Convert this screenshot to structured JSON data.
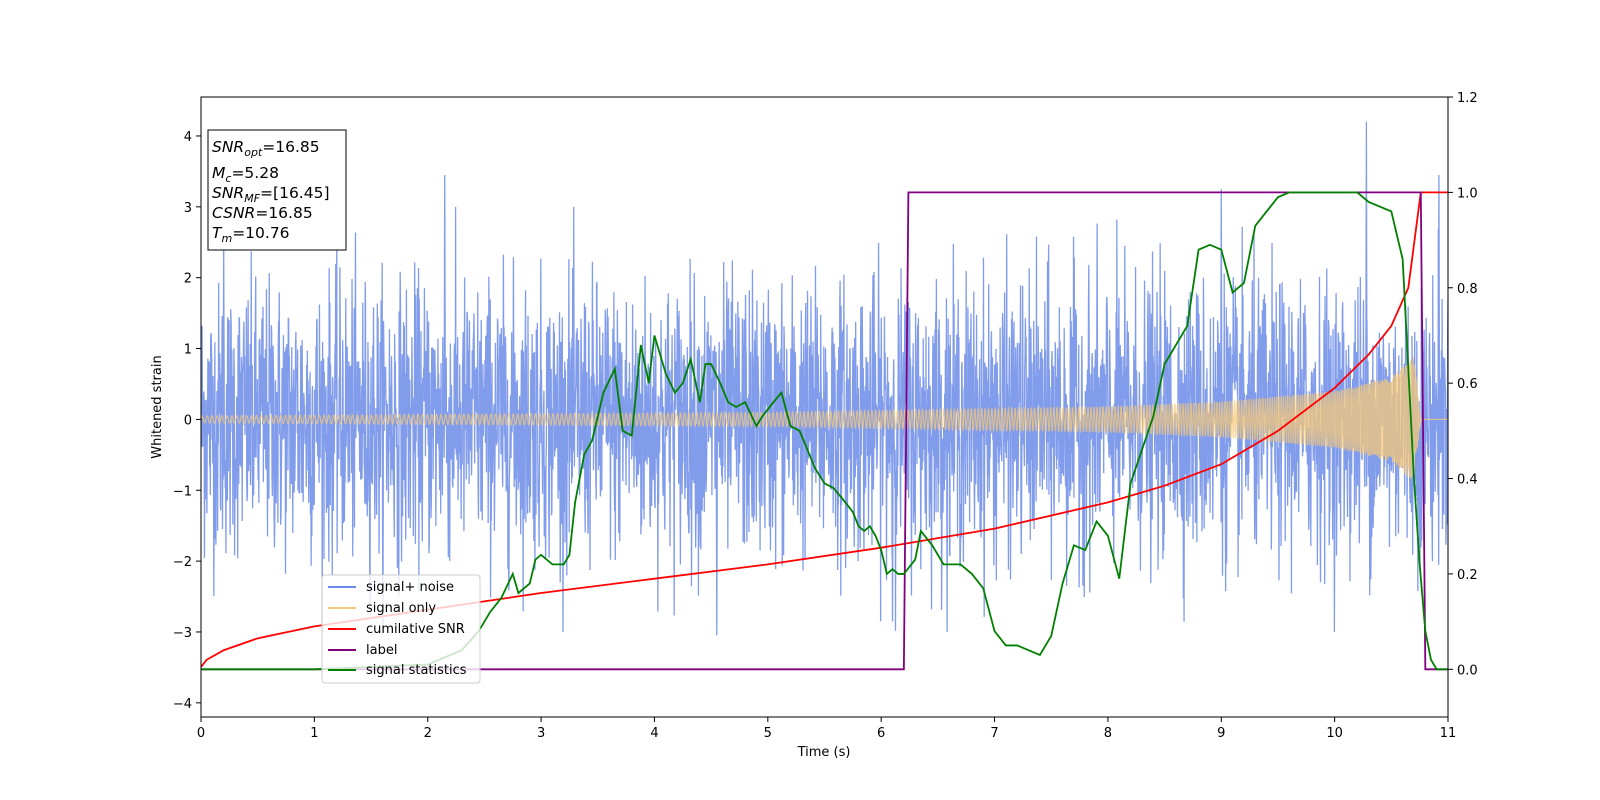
{
  "chart_data": {
    "type": "line",
    "xlabel": "Time (s)",
    "ylabel": "Whitened strain",
    "title": "",
    "xlim": [
      0,
      11
    ],
    "ylim_left": [
      -4.2,
      4.55
    ],
    "ylim_right": [
      -0.1,
      1.2
    ],
    "x_ticks": [
      0,
      1,
      2,
      3,
      4,
      5,
      6,
      7,
      8,
      9,
      10,
      11
    ],
    "y_ticks_left": [
      -4,
      -3,
      -2,
      -1,
      0,
      1,
      2,
      3,
      4
    ],
    "y_ticks_right": [
      0.0,
      0.2,
      0.4,
      0.6,
      0.8,
      1.0,
      1.2
    ],
    "grid": false,
    "legend_position": "lower-left",
    "legend": [
      {
        "label": "signal+ noise",
        "color": "#6b8be8"
      },
      {
        "label": "signal only",
        "color": "#f5c878"
      },
      {
        "label": "cumilative SNR",
        "color": "#ff0000"
      },
      {
        "label": "label",
        "color": "#800080"
      },
      {
        "label": "signal statistics",
        "color": "#008000"
      }
    ],
    "info_box": {
      "snr_opt": {
        "base": "SNR",
        "sub": "opt",
        "value": "=16.85"
      },
      "mc": {
        "base": "M",
        "sub": "c",
        "value": "=5.28"
      },
      "snr_mf": {
        "base": "SNR",
        "sub": "MF",
        "value": "=[16.45]"
      },
      "csnr": {
        "base": "CSNR",
        "value": "=16.85"
      },
      "tm": {
        "base": "T",
        "sub": "m",
        "value": "=10.76"
      }
    },
    "series": [
      {
        "name": "signal+ noise",
        "axis": "left",
        "color": "#6b8be8",
        "description": "whitened noisy strain, approximately Gaussian with std ~1 and spikes up to ~4.2",
        "peaks": [
          [
            0.2,
            2.5
          ],
          [
            2.15,
            3.45
          ],
          [
            9.0,
            3.25
          ],
          [
            10.28,
            4.2
          ],
          [
            10.92,
            3.45
          ],
          [
            4.55,
            -3.05
          ],
          [
            6.1,
            -2.85
          ]
        ]
      },
      {
        "name": "signal only",
        "axis": "left",
        "color": "#f5c878",
        "description": "chirp signal, amplitude grows from ~0.05 to ~0.9 at merger time",
        "amplitude": [
          [
            0,
            0.05
          ],
          [
            5,
            0.1
          ],
          [
            8,
            0.18
          ],
          [
            9,
            0.25
          ],
          [
            10,
            0.4
          ],
          [
            10.5,
            0.6
          ],
          [
            10.7,
            0.9
          ],
          [
            10.76,
            0.0
          ]
        ]
      },
      {
        "name": "cumilative SNR",
        "axis": "right",
        "color": "#ff0000",
        "x": [
          0,
          0.05,
          0.2,
          0.5,
          1.0,
          2.0,
          3.0,
          4.0,
          5.0,
          6.0,
          7.0,
          8.0,
          8.5,
          9.0,
          9.5,
          10.0,
          10.3,
          10.5,
          10.65,
          10.76,
          11.0
        ],
        "y": [
          0.005,
          0.02,
          0.04,
          0.065,
          0.09,
          0.125,
          0.16,
          0.19,
          0.22,
          0.255,
          0.295,
          0.35,
          0.385,
          0.43,
          0.5,
          0.59,
          0.66,
          0.72,
          0.8,
          1.0,
          1.0
        ]
      },
      {
        "name": "label",
        "axis": "right",
        "color": "#800080",
        "x": [
          0,
          6.2,
          6.24,
          10.76,
          10.8,
          11.0
        ],
        "y": [
          0.0,
          0.0,
          1.0,
          1.0,
          0.0,
          0.0
        ]
      },
      {
        "name": "signal statistics",
        "axis": "right",
        "color": "#008000",
        "x": [
          0,
          1.0,
          2.0,
          2.3,
          2.45,
          2.55,
          2.65,
          2.75,
          2.8,
          2.9,
          2.95,
          3.0,
          3.1,
          3.15,
          3.2,
          3.25,
          3.3,
          3.38,
          3.45,
          3.55,
          3.65,
          3.72,
          3.8,
          3.88,
          3.95,
          4.0,
          4.1,
          4.18,
          4.25,
          4.32,
          4.4,
          4.45,
          4.5,
          4.58,
          4.65,
          4.72,
          4.8,
          4.9,
          4.95,
          5.05,
          5.12,
          5.2,
          5.28,
          5.35,
          5.42,
          5.5,
          5.58,
          5.65,
          5.75,
          5.8,
          5.85,
          5.9,
          5.95,
          6.0,
          6.05,
          6.1,
          6.15,
          6.2,
          6.3,
          6.35,
          6.45,
          6.55,
          6.7,
          6.8,
          6.9,
          7.0,
          7.1,
          7.2,
          7.3,
          7.4,
          7.5,
          7.6,
          7.7,
          7.8,
          7.9,
          8.0,
          8.1,
          8.2,
          8.3,
          8.4,
          8.5,
          8.6,
          8.7,
          8.8,
          8.9,
          9.0,
          9.1,
          9.2,
          9.3,
          9.4,
          9.5,
          9.6,
          9.7,
          9.8,
          9.9,
          10.0,
          10.1,
          10.2,
          10.3,
          10.4,
          10.5,
          10.6,
          10.7,
          10.75,
          10.8,
          10.85,
          10.9,
          11.0
        ],
        "y": [
          0.0,
          0.0,
          0.01,
          0.04,
          0.08,
          0.12,
          0.15,
          0.2,
          0.16,
          0.18,
          0.23,
          0.24,
          0.22,
          0.22,
          0.22,
          0.24,
          0.35,
          0.45,
          0.48,
          0.58,
          0.63,
          0.5,
          0.49,
          0.68,
          0.6,
          0.7,
          0.62,
          0.58,
          0.6,
          0.65,
          0.56,
          0.64,
          0.64,
          0.6,
          0.56,
          0.55,
          0.56,
          0.51,
          0.53,
          0.56,
          0.58,
          0.51,
          0.5,
          0.46,
          0.42,
          0.39,
          0.38,
          0.36,
          0.33,
          0.3,
          0.29,
          0.3,
          0.28,
          0.25,
          0.2,
          0.21,
          0.2,
          0.2,
          0.23,
          0.29,
          0.26,
          0.22,
          0.22,
          0.2,
          0.17,
          0.08,
          0.05,
          0.05,
          0.04,
          0.03,
          0.07,
          0.18,
          0.26,
          0.25,
          0.31,
          0.28,
          0.19,
          0.39,
          0.46,
          0.53,
          0.64,
          0.68,
          0.72,
          0.88,
          0.89,
          0.88,
          0.79,
          0.81,
          0.93,
          0.96,
          0.99,
          1.0,
          1.0,
          1.0,
          1.0,
          1.0,
          1.0,
          1.0,
          0.98,
          0.97,
          0.96,
          0.86,
          0.4,
          0.22,
          0.08,
          0.02,
          0.0,
          0.0
        ]
      }
    ]
  }
}
